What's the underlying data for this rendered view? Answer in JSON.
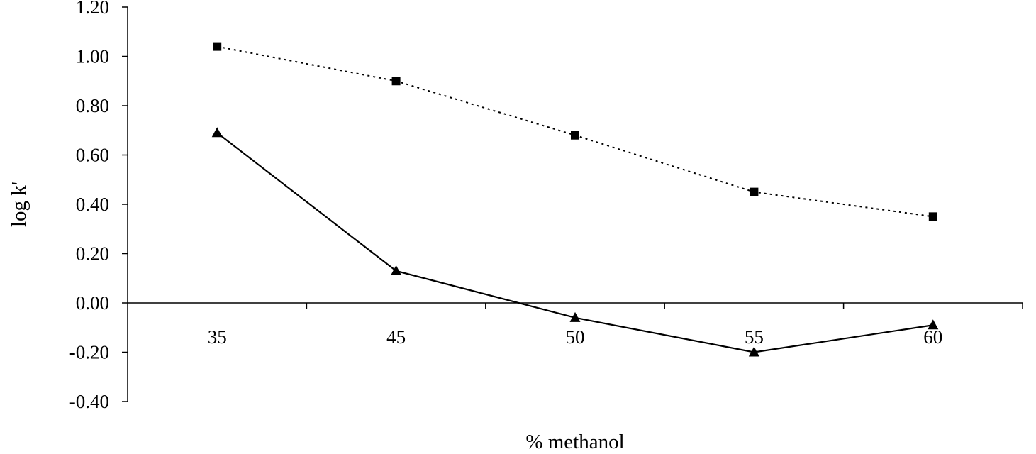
{
  "chart_data": {
    "type": "line",
    "title": "",
    "xlabel": "% methanol",
    "ylabel": "log k'",
    "categories": [
      "35",
      "45",
      "50",
      "55",
      "60"
    ],
    "ylim": [
      -0.4,
      1.2
    ],
    "yticks": [
      "-0.40",
      "-0.20",
      "0.00",
      "0.20",
      "0.40",
      "0.60",
      "0.80",
      "1.00",
      "1.20"
    ],
    "grid": false,
    "legend": "none",
    "series": [
      {
        "marker": "square",
        "line_style": "dotted",
        "color": "#000000",
        "values": [
          1.04,
          0.9,
          0.68,
          0.45,
          0.35
        ]
      },
      {
        "marker": "triangle",
        "line_style": "solid",
        "color": "#000000",
        "values": [
          0.69,
          0.13,
          -0.06,
          -0.2,
          -0.09
        ]
      }
    ]
  }
}
